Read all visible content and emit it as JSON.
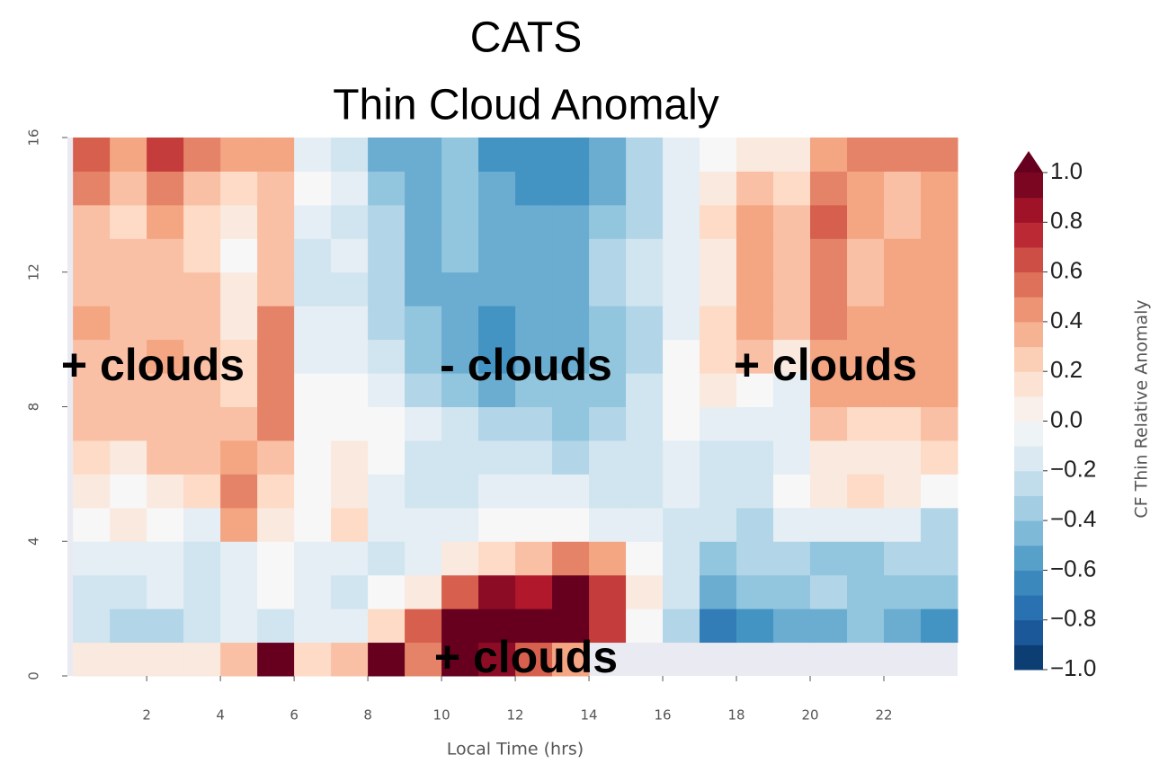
{
  "chart_data": {
    "type": "heatmap",
    "title": "CATS",
    "subtitle": "Thin Cloud Anomaly",
    "x_label": "Local Time (hrs)",
    "colorbar_label": "CF Thin Relative Anomaly",
    "xbins": [
      0,
      1,
      2,
      3,
      4,
      5,
      6,
      7,
      8,
      9,
      10,
      11,
      12,
      13,
      14,
      15,
      16,
      17,
      18,
      19,
      20,
      21,
      22,
      23,
      24
    ],
    "ybins": [
      0,
      1,
      2,
      3,
      4,
      5,
      6,
      7,
      8,
      9,
      10,
      11,
      12,
      13,
      14,
      15,
      16
    ],
    "xlim": [
      -0.15,
      24
    ],
    "ylim": [
      0,
      16
    ],
    "xticks": [
      2,
      4,
      6,
      8,
      10,
      12,
      14,
      16,
      18,
      20,
      22
    ],
    "yticks": [
      0,
      4,
      8,
      12,
      16
    ],
    "vlim": [
      -1,
      1
    ],
    "colormap": [
      "#053061",
      "#2166ac",
      "#4393c3",
      "#92c5de",
      "#d1e5f0",
      "#f7f7f7",
      "#fddbc7",
      "#f4a582",
      "#d6604d",
      "#b2182b",
      "#67001f"
    ],
    "cticks": [
      {
        "value": 1,
        "label": "1.0"
      },
      {
        "value": 0.8,
        "label": "0.8"
      },
      {
        "value": 0.6,
        "label": "0.6"
      },
      {
        "value": 0.4,
        "label": "0.4"
      },
      {
        "value": 0.2,
        "label": "0.2"
      },
      {
        "value": 0,
        "label": "0.0"
      },
      {
        "value": -0.2,
        "label": "−0.2"
      },
      {
        "value": -0.4,
        "label": "−0.4"
      },
      {
        "value": -0.6,
        "label": "−0.6"
      },
      {
        "value": -0.8,
        "label": "−0.8"
      },
      {
        "value": -1,
        "label": "−1.0"
      }
    ],
    "annotations": [
      "+ clouds",
      "- clouds",
      "+ clouds",
      "+ clouds"
    ],
    "z": [
      [
        0.1,
        0.1,
        0.1,
        0.1,
        0.3,
        1.0,
        0.2,
        0.3,
        1.0,
        0.5,
        1.0,
        0.9,
        0.6,
        0.4,
        null,
        null,
        null,
        null,
        null,
        null,
        null,
        null,
        null,
        null
      ],
      [
        -0.2,
        -0.3,
        -0.3,
        -0.2,
        -0.1,
        -0.2,
        -0.1,
        -0.1,
        0.2,
        0.6,
        1.0,
        1.0,
        1.0,
        1.0,
        0.7,
        0.0,
        -0.3,
        -0.7,
        -0.6,
        -0.5,
        -0.5,
        -0.4,
        -0.5,
        -0.6
      ],
      [
        -0.2,
        -0.2,
        -0.1,
        -0.2,
        -0.1,
        0.0,
        -0.1,
        -0.2,
        0.0,
        0.1,
        0.6,
        0.9,
        0.8,
        1.0,
        0.7,
        0.1,
        -0.2,
        -0.5,
        -0.4,
        -0.4,
        -0.3,
        -0.4,
        -0.4,
        -0.4
      ],
      [
        -0.1,
        -0.1,
        -0.1,
        -0.2,
        -0.1,
        0.0,
        -0.1,
        -0.1,
        -0.2,
        -0.1,
        0.1,
        0.2,
        0.3,
        0.5,
        0.4,
        0.0,
        -0.2,
        -0.4,
        -0.3,
        -0.3,
        -0.4,
        -0.4,
        -0.3,
        -0.3
      ],
      [
        0.0,
        0.1,
        0.0,
        -0.1,
        0.4,
        0.1,
        0.0,
        0.2,
        -0.1,
        -0.1,
        -0.1,
        0.0,
        0.0,
        0.0,
        -0.1,
        -0.1,
        -0.2,
        -0.2,
        -0.3,
        -0.1,
        -0.1,
        -0.1,
        -0.1,
        -0.3
      ],
      [
        0.1,
        0.0,
        0.1,
        0.2,
        0.5,
        0.2,
        0.0,
        0.1,
        -0.1,
        -0.2,
        -0.2,
        -0.1,
        -0.1,
        -0.1,
        -0.2,
        -0.2,
        -0.1,
        -0.2,
        -0.2,
        0.0,
        0.1,
        0.2,
        0.1,
        0.0
      ],
      [
        0.2,
        0.1,
        0.3,
        0.3,
        0.4,
        0.3,
        0.0,
        0.1,
        0.0,
        -0.2,
        -0.2,
        -0.2,
        -0.2,
        -0.3,
        -0.2,
        -0.2,
        -0.1,
        -0.2,
        -0.2,
        -0.1,
        0.1,
        0.1,
        0.1,
        0.2
      ],
      [
        0.3,
        0.3,
        0.3,
        0.3,
        0.3,
        0.5,
        0.0,
        0.0,
        0.0,
        -0.1,
        -0.2,
        -0.3,
        -0.3,
        -0.4,
        -0.3,
        -0.2,
        0.0,
        -0.1,
        -0.1,
        -0.1,
        0.3,
        0.2,
        0.2,
        0.3
      ],
      [
        0.3,
        0.3,
        0.3,
        0.3,
        0.2,
        0.5,
        0.0,
        0.0,
        -0.1,
        -0.3,
        -0.4,
        -0.5,
        -0.4,
        -0.4,
        -0.4,
        -0.2,
        0.0,
        0.1,
        0.0,
        -0.1,
        0.4,
        0.4,
        0.4,
        0.4
      ],
      [
        0.3,
        0.3,
        0.4,
        0.3,
        0.2,
        0.5,
        -0.1,
        -0.1,
        -0.2,
        -0.4,
        -0.5,
        -0.6,
        -0.5,
        -0.5,
        -0.4,
        -0.3,
        0.0,
        0.2,
        0.3,
        0.1,
        0.4,
        0.4,
        0.4,
        0.4
      ],
      [
        0.4,
        0.3,
        0.3,
        0.3,
        0.1,
        0.5,
        -0.1,
        -0.1,
        -0.3,
        -0.4,
        -0.5,
        -0.6,
        -0.5,
        -0.5,
        -0.4,
        -0.3,
        -0.1,
        0.2,
        0.4,
        0.3,
        0.5,
        0.4,
        0.4,
        0.4
      ],
      [
        0.3,
        0.3,
        0.3,
        0.3,
        0.1,
        0.3,
        -0.2,
        -0.2,
        -0.3,
        -0.5,
        -0.5,
        -0.5,
        -0.5,
        -0.5,
        -0.3,
        -0.2,
        -0.1,
        0.1,
        0.4,
        0.3,
        0.5,
        0.3,
        0.4,
        0.4
      ],
      [
        0.3,
        0.3,
        0.3,
        0.2,
        0.0,
        0.3,
        -0.2,
        -0.1,
        -0.3,
        -0.5,
        -0.4,
        -0.5,
        -0.5,
        -0.5,
        -0.3,
        -0.2,
        -0.1,
        0.1,
        0.4,
        0.3,
        0.5,
        0.3,
        0.4,
        0.4
      ],
      [
        0.3,
        0.2,
        0.4,
        0.2,
        0.1,
        0.3,
        -0.1,
        -0.2,
        -0.3,
        -0.5,
        -0.4,
        -0.5,
        -0.5,
        -0.5,
        -0.4,
        -0.3,
        -0.1,
        0.2,
        0.4,
        0.3,
        0.6,
        0.4,
        0.3,
        0.4
      ],
      [
        0.5,
        0.3,
        0.5,
        0.3,
        0.2,
        0.3,
        0.0,
        -0.1,
        -0.4,
        -0.5,
        -0.4,
        -0.5,
        -0.6,
        -0.6,
        -0.5,
        -0.3,
        -0.1,
        0.1,
        0.3,
        0.2,
        0.5,
        0.4,
        0.3,
        0.4
      ],
      [
        0.6,
        0.4,
        0.7,
        0.5,
        0.4,
        0.4,
        -0.1,
        -0.2,
        -0.5,
        -0.5,
        -0.4,
        -0.6,
        -0.6,
        -0.6,
        -0.5,
        -0.3,
        -0.1,
        0.0,
        0.1,
        0.1,
        0.4,
        0.5,
        0.5,
        0.5
      ]
    ]
  }
}
